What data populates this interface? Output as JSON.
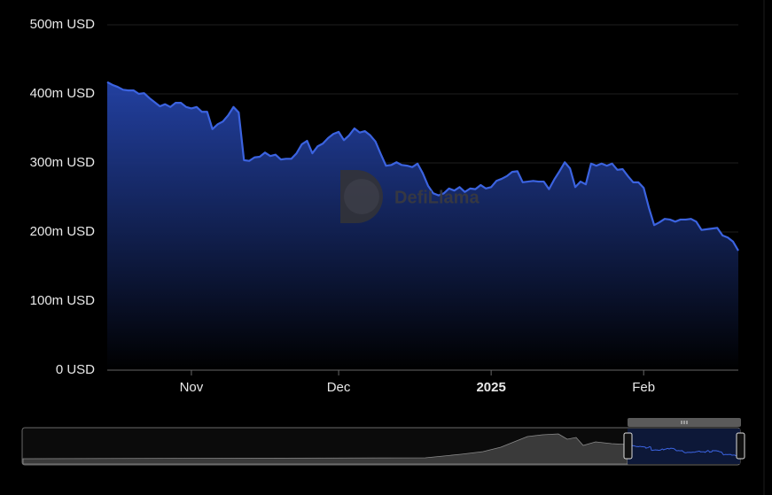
{
  "chart_data": {
    "type": "area",
    "watermark": "DefiLlama",
    "color": "#3b63e0",
    "grid": true,
    "ylim": [
      0,
      500
    ],
    "yticks": [
      {
        "value": 0,
        "label": "0 USD"
      },
      {
        "value": 100,
        "label": "100m USD"
      },
      {
        "value": 200,
        "label": "200m USD"
      },
      {
        "value": 300,
        "label": "300m USD"
      },
      {
        "value": 400,
        "label": "400m USD"
      },
      {
        "value": 500,
        "label": "500m USD"
      }
    ],
    "categories": [
      null,
      null,
      null,
      null,
      null,
      null,
      null,
      null,
      null,
      null,
      null,
      null,
      null,
      null,
      null,
      null,
      "Nov",
      null,
      null,
      null,
      null,
      null,
      null,
      null,
      null,
      null,
      null,
      null,
      null,
      null,
      null,
      null,
      null,
      null,
      null,
      null,
      null,
      null,
      null,
      null,
      null,
      null,
      null,
      null,
      "Dec",
      null,
      null,
      null,
      null,
      null,
      null,
      null,
      null,
      null,
      null,
      null,
      null,
      null,
      null,
      null,
      null,
      null,
      null,
      null,
      null,
      null,
      null,
      null,
      null,
      null,
      null,
      null,
      null,
      "2025",
      null,
      null,
      null,
      null,
      null,
      null,
      null,
      null,
      null,
      null,
      null,
      null,
      null,
      null,
      null,
      null,
      null,
      null,
      null,
      null,
      null,
      null,
      null,
      null,
      null,
      null,
      null,
      null,
      "Feb",
      null,
      null,
      null,
      null,
      null,
      null,
      null,
      null,
      null,
      null,
      null,
      null,
      null,
      null,
      null,
      null,
      null,
      null
    ],
    "values": [
      417,
      413,
      410,
      406,
      405,
      405,
      400,
      401,
      394,
      388,
      382,
      385,
      381,
      387,
      387,
      381,
      379,
      381,
      374,
      374,
      349,
      356,
      360,
      369,
      381,
      373,
      304,
      303,
      308,
      309,
      315,
      310,
      312,
      305,
      306,
      306,
      314,
      327,
      332,
      314,
      324,
      328,
      336,
      342,
      345,
      333,
      340,
      350,
      344,
      346,
      340,
      331,
      313,
      296,
      297,
      301,
      297,
      296,
      294,
      299,
      285,
      267,
      256,
      253,
      256,
      263,
      260,
      265,
      258,
      263,
      262,
      268,
      263,
      265,
      274,
      277,
      281,
      287,
      288,
      272,
      273,
      274,
      273,
      273,
      262,
      276,
      288,
      301,
      292,
      265,
      273,
      269,
      299,
      296,
      299,
      296,
      299,
      290,
      291,
      281,
      272,
      272,
      264,
      235,
      210,
      214,
      219,
      218,
      215,
      218,
      218,
      219,
      215,
      203,
      204,
      205,
      206,
      195,
      192,
      186,
      173
    ]
  }
}
